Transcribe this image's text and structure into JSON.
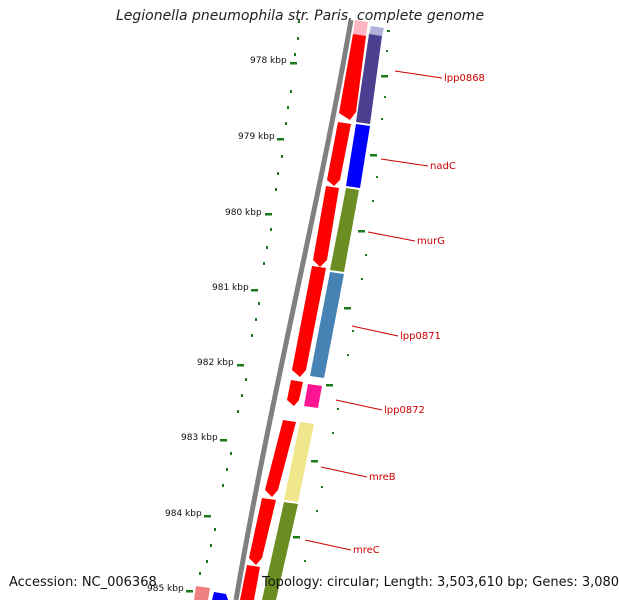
{
  "title": "Legionella pneumophila str. Paris, complete genome",
  "accession": "Accession: NC_006368",
  "summary": "Topology: circular; Length: 3,503,610 bp; Genes: 3,080",
  "kbp_labels": [
    "978 kbp",
    "979 kbp",
    "980 kbp",
    "981 kbp",
    "982 kbp",
    "983 kbp",
    "984 kbp",
    "985 kbp"
  ],
  "genes": [
    {
      "label": "lpp0868",
      "color": "#4b3f8f"
    },
    {
      "label": "nadC",
      "color": "#0000ff"
    },
    {
      "label": "murG",
      "color": "#6b8e23"
    },
    {
      "label": "lpp0871",
      "color": "#4682b4"
    },
    {
      "label": "lpp0872",
      "color": "#ff1493"
    },
    {
      "label": "mreB",
      "color": "#f0e68c"
    },
    {
      "label": "mreC",
      "color": "#6b8e23"
    }
  ],
  "colors": {
    "cds": "#ff0000",
    "backbone": "#808080",
    "ticks": "#1a7a1a",
    "label_text": "#cc0000"
  }
}
